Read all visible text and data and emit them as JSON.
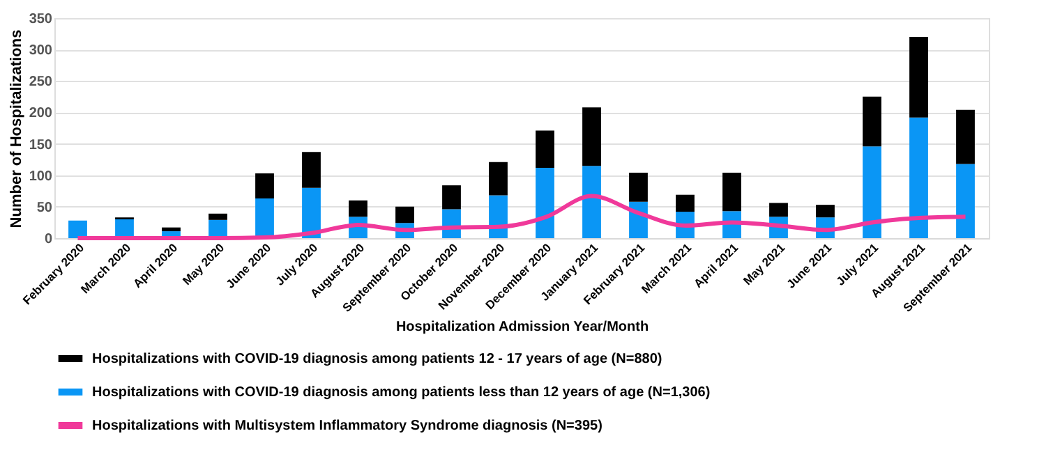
{
  "chart_data": {
    "type": "bar",
    "stacked": true,
    "xlabel": "Hospitalization Admission Year/Month",
    "ylabel": "Number of Hospitalizations",
    "categories": [
      "February 2020",
      "March 2020",
      "April 2020",
      "May 2020",
      "June 2020",
      "July 2020",
      "August 2020",
      "September 2020",
      "October 2020",
      "November 2020",
      "December 2020",
      "January 2021",
      "February 2021",
      "March 2021",
      "April 2021",
      "May 2021",
      "June 2021",
      "July 2021",
      "August 2021",
      "September 2021"
    ],
    "series": [
      {
        "name": "Hospitalizations with COVID-19 diagnosis among patients less than 12 years of age (N=1,306)",
        "color": "#0a96f5",
        "values": [
          28,
          30,
          11,
          29,
          63,
          80,
          34,
          24,
          46,
          68,
          112,
          115,
          58,
          42,
          43,
          34,
          33,
          146,
          192,
          118
        ]
      },
      {
        "name": "Hospitalizations with COVID-19 diagnosis among patients 12 - 17 years of age (N=880)",
        "color": "#000000",
        "values": [
          0,
          3,
          6,
          10,
          40,
          57,
          26,
          26,
          38,
          53,
          59,
          93,
          46,
          27,
          61,
          22,
          20,
          79,
          128,
          86
        ]
      },
      {
        "name": "Hospitalizations with Multisystem Inflammatory Syndrome diagnosis (N=395)",
        "type": "line",
        "color": "#f0399a",
        "values": [
          0,
          0,
          0,
          0,
          1,
          8,
          21,
          13,
          17,
          18,
          33,
          67,
          40,
          20,
          25,
          20,
          13,
          25,
          32,
          34
        ]
      }
    ],
    "ylim": [
      0,
      350
    ],
    "yticks": [
      0,
      50,
      100,
      150,
      200,
      250,
      300,
      350
    ],
    "grid": "y",
    "legend": "bottom"
  }
}
